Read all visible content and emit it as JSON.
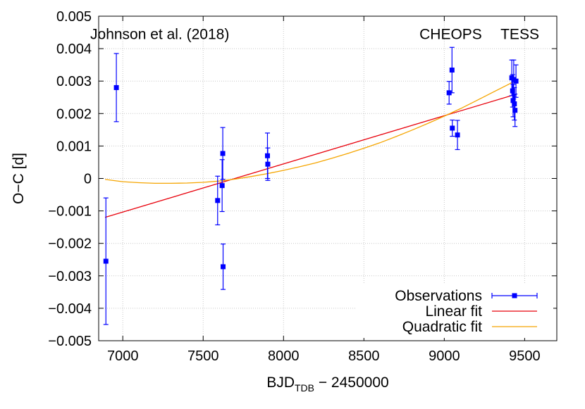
{
  "chart_data": {
    "type": "scatter",
    "xlabel_main": "BJD",
    "xlabel_sub": "TDB",
    "xlabel_rest": " − 2450000",
    "ylabel": "O−C [d]",
    "xlim": [
      6850,
      9700
    ],
    "ylim": [
      -0.005,
      0.005
    ],
    "xticks": [
      7000,
      7500,
      8000,
      8500,
      9000,
      9500
    ],
    "yticks": [
      -0.005,
      -0.004,
      -0.003,
      -0.002,
      -0.001,
      0,
      0.001,
      0.002,
      0.003,
      0.004,
      0.005
    ],
    "ytick_labels": [
      "−0.005",
      "−0.004",
      "−0.003",
      "−0.002",
      "−0.001",
      "0",
      "0.001",
      "0.002",
      "0.003",
      "0.004",
      "0.005"
    ],
    "grid": true,
    "legend_position": "bottom-right",
    "annotations": [
      {
        "text": "Johnson et al. (2018)",
        "x": 7230,
        "y": 0.00445
      },
      {
        "text": "CHEOPS",
        "x": 9040,
        "y": 0.00445
      },
      {
        "text": "TESS",
        "x": 9470,
        "y": 0.00445
      }
    ],
    "series": [
      {
        "name": "Observations",
        "kind": "points_errorbars",
        "color": "#0000ff",
        "points": [
          {
            "x": 6895,
            "y": -0.00255,
            "err": 0.00195
          },
          {
            "x": 6960,
            "y": 0.0028,
            "err": 0.00105
          },
          {
            "x": 7590,
            "y": -0.00068,
            "err": 0.00075
          },
          {
            "x": 7618,
            "y": -0.00022,
            "err": 0.0008
          },
          {
            "x": 7622,
            "y": 0.00077,
            "err": 0.0008
          },
          {
            "x": 7624,
            "y": -0.00272,
            "err": 0.0007
          },
          {
            "x": 7900,
            "y": 0.0007,
            "err": 0.0007
          },
          {
            "x": 7902,
            "y": 0.00044,
            "err": 0.0005
          },
          {
            "x": 9030,
            "y": 0.00264,
            "err": 0.00035
          },
          {
            "x": 9048,
            "y": 0.00334,
            "err": 0.0007
          },
          {
            "x": 9050,
            "y": 0.00155,
            "err": 0.00025
          },
          {
            "x": 9082,
            "y": 0.00134,
            "err": 0.00045
          },
          {
            "x": 9420,
            "y": 0.0031,
            "err": 0.00055
          },
          {
            "x": 9425,
            "y": 0.0027,
            "err": 0.0005
          },
          {
            "x": 9428,
            "y": 0.0024,
            "err": 0.0005
          },
          {
            "x": 9432,
            "y": 0.00305,
            "err": 0.0006
          },
          {
            "x": 9436,
            "y": 0.0023,
            "err": 0.0005
          },
          {
            "x": 9440,
            "y": 0.0021,
            "err": 0.0005
          },
          {
            "x": 9446,
            "y": 0.003,
            "err": 0.0005
          }
        ]
      },
      {
        "name": "Linear fit",
        "kind": "line",
        "color": "#e8000b",
        "x": [
          6890,
          9450
        ],
        "y": [
          -0.0012,
          0.0026
        ]
      },
      {
        "name": "Quadratic fit",
        "kind": "line",
        "color": "#f5a500",
        "x": [
          6890,
          7000,
          7100,
          7200,
          7300,
          7400,
          7500,
          7600,
          7700,
          7800,
          7900,
          8000,
          8100,
          8200,
          8300,
          8400,
          8500,
          8600,
          8700,
          8800,
          8900,
          9000,
          9100,
          9200,
          9300,
          9400,
          9450
        ],
        "y": [
          -3e-05,
          -0.0001,
          -0.00013,
          -0.00015,
          -0.00015,
          -0.00014,
          -0.00012,
          -8e-05,
          -2e-05,
          6e-05,
          0.00015,
          0.00025,
          0.00036,
          0.00048,
          0.00062,
          0.00077,
          0.00093,
          0.0011,
          0.00129,
          0.00149,
          0.0017,
          0.00192,
          0.00215,
          0.0024,
          0.00265,
          0.0029,
          0.00304
        ]
      }
    ]
  }
}
